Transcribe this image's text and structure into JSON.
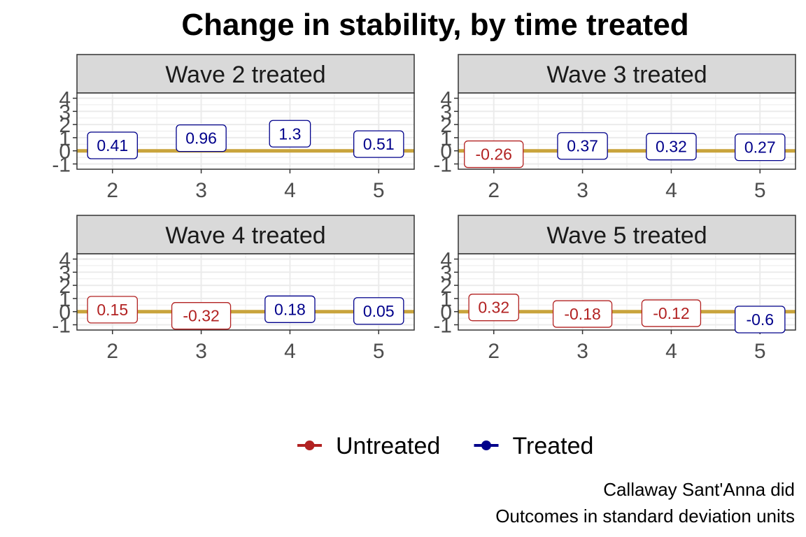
{
  "chart_data": {
    "type": "line",
    "title": "Change in stability, by time treated",
    "x_ticks": [
      2,
      3,
      4,
      5
    ],
    "y_ticks": [
      -1,
      0,
      1,
      2,
      3,
      4
    ],
    "xlim": [
      1.6,
      5.4
    ],
    "ylim": [
      -1.4,
      4.4
    ],
    "reference_line_y": 0,
    "panels": [
      {
        "strip": "Wave 2 treated",
        "points": [
          {
            "x": 2,
            "y": 0.41,
            "label": "0.41",
            "group": "Treated"
          },
          {
            "x": 3,
            "y": 0.96,
            "label": "0.96",
            "group": "Treated"
          },
          {
            "x": 4,
            "y": 1.3,
            "label": "1.3",
            "group": "Treated"
          },
          {
            "x": 5,
            "y": 0.51,
            "label": "0.51",
            "group": "Treated"
          }
        ]
      },
      {
        "strip": "Wave 3 treated",
        "points": [
          {
            "x": 2,
            "y": -0.26,
            "label": "-0.26",
            "group": "Untreated"
          },
          {
            "x": 3,
            "y": 0.37,
            "label": "0.37",
            "group": "Treated"
          },
          {
            "x": 4,
            "y": 0.32,
            "label": "0.32",
            "group": "Treated"
          },
          {
            "x": 5,
            "y": 0.27,
            "label": "0.27",
            "group": "Treated"
          }
        ]
      },
      {
        "strip": "Wave 4 treated",
        "points": [
          {
            "x": 2,
            "y": 0.15,
            "label": "0.15",
            "group": "Untreated"
          },
          {
            "x": 3,
            "y": -0.32,
            "label": "-0.32",
            "group": "Untreated"
          },
          {
            "x": 4,
            "y": 0.18,
            "label": "0.18",
            "group": "Treated"
          },
          {
            "x": 5,
            "y": 0.05,
            "label": "0.05",
            "group": "Treated"
          }
        ]
      },
      {
        "strip": "Wave 5 treated",
        "points": [
          {
            "x": 2,
            "y": 0.32,
            "label": "0.32",
            "group": "Untreated"
          },
          {
            "x": 3,
            "y": -0.18,
            "label": "-0.18",
            "group": "Untreated"
          },
          {
            "x": 4,
            "y": -0.12,
            "label": "-0.12",
            "group": "Untreated"
          },
          {
            "x": 5,
            "y": -0.6,
            "label": "-0.6",
            "group": "Treated"
          }
        ]
      }
    ],
    "legend": {
      "placement": "bottom",
      "entries": [
        {
          "name": "Untreated",
          "color": "#b22222"
        },
        {
          "name": "Treated",
          "color": "#00008b"
        }
      ]
    },
    "caption": [
      "Callaway Sant'Anna did",
      "Outcomes in standard deviation units"
    ],
    "colors": {
      "Untreated": "#b22222",
      "Treated": "#00008b",
      "reference_line": "#c9a43c",
      "strip_fill": "#d9d9d9",
      "grid": "#ebebeb",
      "panel_border": "#333333"
    },
    "grid": true
  }
}
